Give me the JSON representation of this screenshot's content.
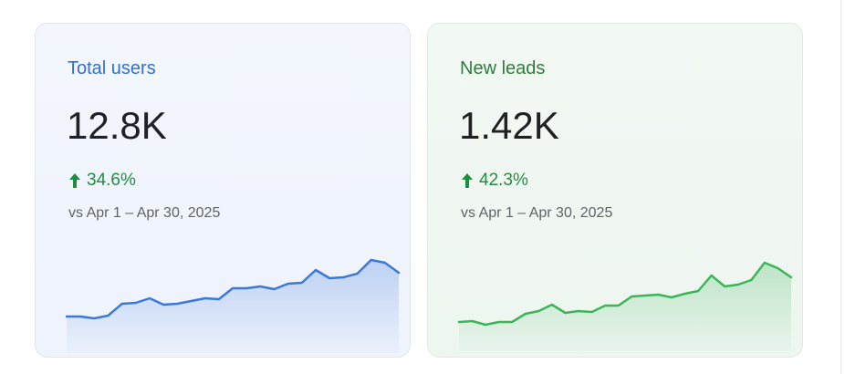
{
  "cards": [
    {
      "title": "Total users",
      "value": "12.8K",
      "change": "34.6%",
      "comparison": "vs Apr 1 – Apr 30, 2025",
      "sparkline": {
        "type": "line",
        "color": "#3a78dc",
        "values": [
          34,
          34,
          32,
          35,
          48,
          49,
          54,
          47,
          48,
          51,
          54,
          53,
          65,
          65,
          67,
          64,
          70,
          71,
          85,
          76,
          77,
          81,
          96,
          93,
          82
        ]
      }
    },
    {
      "title": "New leads",
      "value": "1.42K",
      "change": "42.3%",
      "comparison": "vs Apr 1 – Apr 30, 2025",
      "sparkline": {
        "type": "line",
        "color": "#3cb55a",
        "values": [
          28,
          29,
          25,
          28,
          28,
          37,
          40,
          47,
          38,
          40,
          39,
          46,
          46,
          56,
          57,
          58,
          55,
          59,
          62,
          79,
          67,
          69,
          74,
          93,
          87,
          77
        ]
      }
    }
  ]
}
